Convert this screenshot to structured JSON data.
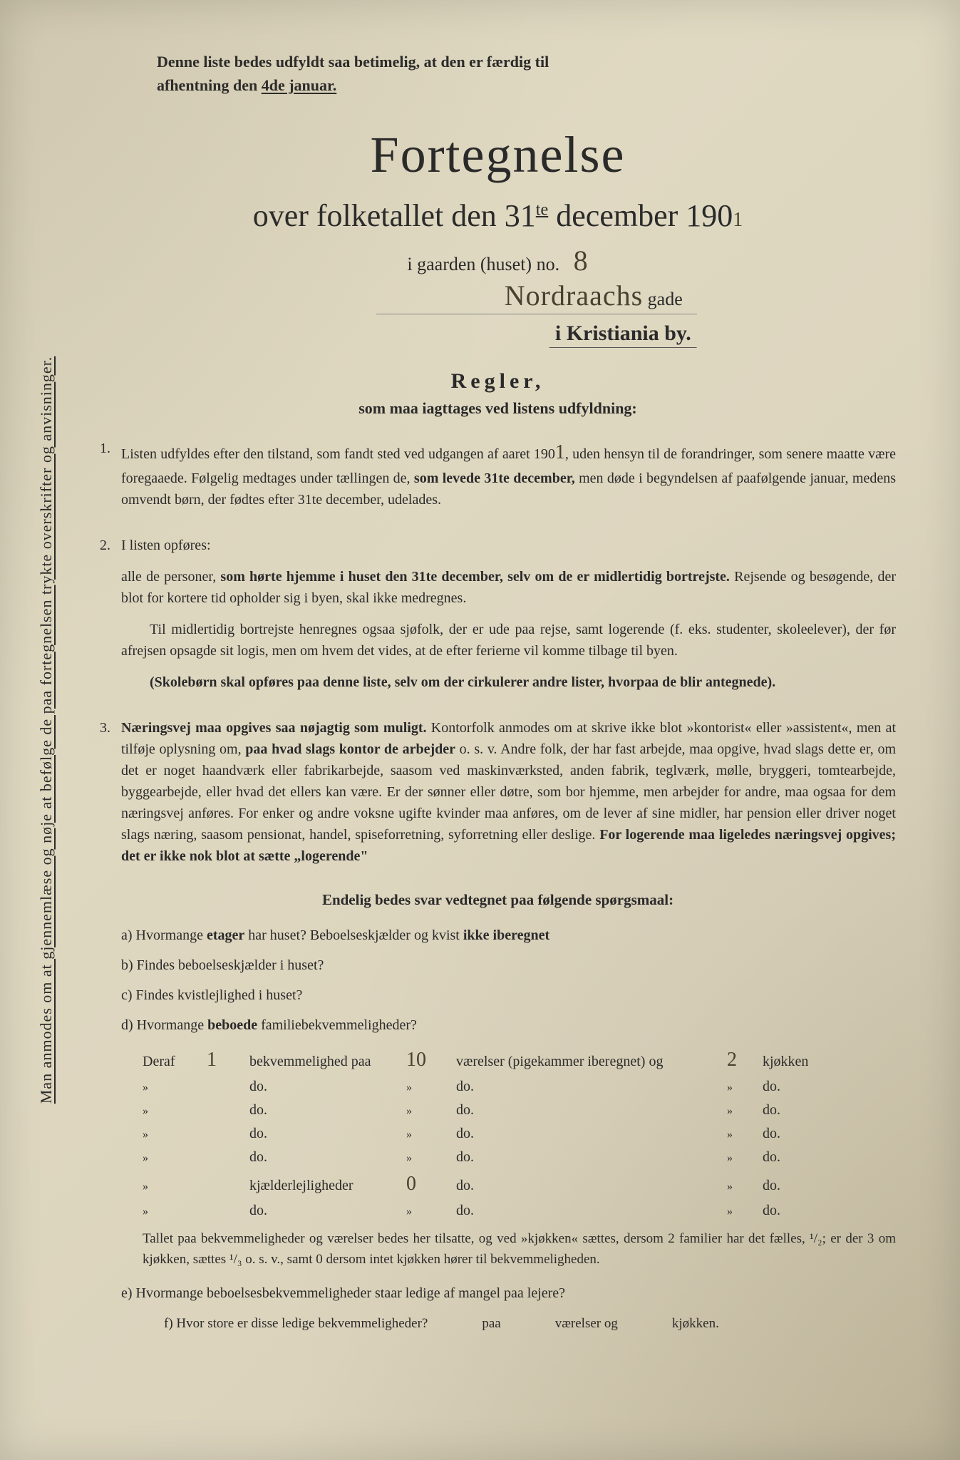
{
  "vertical_note": "Man anmodes om at gjennemlæse og nøje at befølge de paa fortegnelsen trykte overskrifter og anvisninger.",
  "top_note_1": "Denne liste bedes udfyldt saa betimelig, at den er færdig til",
  "top_note_2": "afhentning den ",
  "top_note_date": "4de januar.",
  "title": "Fortegnelse",
  "subtitle_pre": "over folketallet den 31",
  "subtitle_sup": "te",
  "subtitle_post": " december 190",
  "year_hand": "1",
  "gaard_label": "i gaarden (huset) no.",
  "gaard_no": "8",
  "street_hand": "Nordraachs",
  "street_suffix": "gade",
  "city": "i Kristiania by.",
  "regler": "Regler,",
  "regler_sub": "som maa iagttages ved listens udfyldning:",
  "rule1_num": "1.",
  "rule1_a": "Listen udfyldes efter den tilstand, som fandt sted ved udgangen af aaret 190",
  "rule1_a_hand": "1",
  "rule1_a2": ", uden hensyn til de forandringer, som senere maatte være foregaaede. Følgelig medtages under tællingen de, ",
  "rule1_bold1": "som levede 31te december,",
  "rule1_a3": " men døde i begyndelsen af paafølgende januar, medens omvendt børn, der fødtes efter 31te december, udelades.",
  "rule2_num": "2.",
  "rule2_a": "I listen opføres:",
  "rule2_b": "alle de personer, ",
  "rule2_bold": "som hørte hjemme i huset den 31te december, selv om de er midlertidig bortrejste.",
  "rule2_c": " Rejsende og besøgende, der blot for kortere tid opholder sig i byen, skal ikke medregnes.",
  "rule2_d": "Til midlertidig bortrejste henregnes ogsaa sjøfolk, der er ude paa rejse, samt logerende (f. eks. studenter, skoleelever), der før afrejsen opsagde sit logis, men om hvem det vides, at de efter ferierne vil komme tilbage til byen.",
  "rule2_e_bold": "(Skolebørn skal opføres paa denne liste, selv om der cirkulerer andre lister, hvorpaa de blir antegnede).",
  "rule3_num": "3.",
  "rule3_bold1": "Næringsvej maa opgives saa nøjagtig som muligt.",
  "rule3_a": " Kontorfolk anmodes om at skrive ikke blot »kontorist« eller »assistent«, men at tilføje oplysning om, ",
  "rule3_bold2": "paa hvad slags kontor de arbejder",
  "rule3_b": " o. s. v. Andre folk, der har fast arbejde, maa opgive, hvad slags dette er, om det er noget haandværk eller fabrikarbejde, saasom ved maskinværksted, anden fabrik, teglværk, mølle, bryggeri, tomtearbejde, byggearbejde, eller hvad det ellers kan være. Er der sønner eller døtre, som bor hjemme, men arbejder for andre, maa ogsaa for dem næringsvej anføres. For enker og andre voksne ugifte kvinder maa anføres, om de lever af sine midler, har pension eller driver noget slags næring, saasom pensionat, handel, spiseforretning, syforretning eller deslige. ",
  "rule3_bold3": "For logerende maa ligeledes næringsvej opgives; det er ikke nok blot at sætte „logerende\"",
  "endelig": "Endelig bedes svar vedtegnet paa følgende spørgsmaal:",
  "qa": "a) Hvormange ",
  "qa_bold": "etager",
  "qa2": " har huset? Beboelseskjælder og kvist ",
  "qa_bold2": "ikke iberegnet",
  "qb": "b) Findes beboelseskjælder i huset?",
  "qc": "c) Findes kvistlejlighed i huset?",
  "qd": "d) Hvormange ",
  "qd_bold": "beboede",
  "qd2": " familiebekvemmeligheder?",
  "deraf_label": "Deraf",
  "deraf_n1": "1",
  "deraf_mid1": "bekvemmelighed",
  "deraf_paa": "paa",
  "deraf_v1": "10",
  "deraf_mid2": "værelser (pigekammer iberegnet) og",
  "deraf_k1": "2",
  "deraf_end": "kjøkken",
  "do": "do.",
  "kjaelder": "kjælderlejligheder",
  "kjaelder_v": "0",
  "footnote_text": "Tallet paa bekvemmeligheder og værelser bedes her tilsatte, og ved »kjøkken« sættes, dersom 2 familier har det fælles, ¹/₂; er der 3 om kjøkken, sættes ¹/₃ o. s. v., samt 0 dersom intet kjøkken hører til bekvemmeligheden.",
  "qe": "e) Hvormange beboelsesbekvemmeligheder staar ledige af mangel paa lejere?",
  "qf": "f) Hvor store er disse ledige bekvemmeligheder?",
  "qf_paa": "paa",
  "qf_v": "værelser og",
  "qf_k": "kjøkken."
}
